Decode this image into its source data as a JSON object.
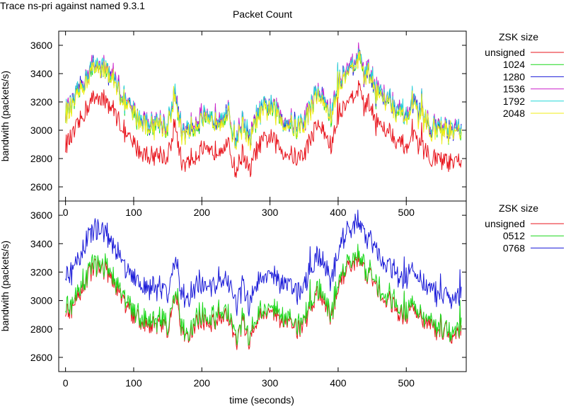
{
  "header": {
    "trace_title": "Trace ns-pri against named 9.3.1",
    "chart_title": "Packet Count"
  },
  "colors": {
    "red": "#e8141c",
    "magenta": "#cc22cc",
    "blue": "#1a1ad8",
    "cyan": "#22d8d8",
    "green": "#1ad81a",
    "yellow": "#f2ee14"
  },
  "chart_data": [
    {
      "type": "line",
      "title": "Packet Count",
      "xlabel": "",
      "ylabel": "bandwith (packets/s)",
      "xlim": [
        -10,
        588
      ],
      "ylim": [
        2500,
        3700
      ],
      "x_ticks": [
        "0",
        "100",
        "200",
        "300",
        "400",
        "500"
      ],
      "y_ticks": [
        "2600",
        "2800",
        "3000",
        "3200",
        "3400",
        "3600"
      ],
      "legend_title": "ZSK size",
      "legend_position": "outside-right",
      "series": [
        {
          "name": "unsigned",
          "color": "#e8141c",
          "offset": 0
        },
        {
          "name": "1024",
          "color": "#1ad81a",
          "offset": 215
        },
        {
          "name": "1280",
          "color": "#1a1ad8",
          "offset": 225
        },
        {
          "name": "1536",
          "color": "#cc22cc",
          "offset": 238
        },
        {
          "name": "1792",
          "color": "#22d8d8",
          "offset": 230
        },
        {
          "name": "2048",
          "color": "#f2ee14",
          "offset": 205
        }
      ],
      "unsigned_profile": {
        "x": [
          0,
          10,
          20,
          30,
          40,
          50,
          60,
          70,
          80,
          90,
          100,
          110,
          120,
          130,
          140,
          150,
          160,
          170,
          180,
          190,
          200,
          210,
          220,
          230,
          240,
          250,
          260,
          270,
          280,
          290,
          300,
          310,
          320,
          330,
          340,
          350,
          360,
          370,
          380,
          390,
          400,
          410,
          420,
          430,
          440,
          450,
          460,
          470,
          480,
          490,
          500,
          510,
          520,
          530,
          540,
          550,
          560,
          570,
          580
        ],
        "y": [
          2900,
          2950,
          3050,
          3150,
          3220,
          3250,
          3200,
          3150,
          3050,
          2950,
          2900,
          2850,
          2830,
          2820,
          2840,
          2800,
          3050,
          2780,
          2760,
          2820,
          2870,
          2820,
          2860,
          2900,
          2880,
          2700,
          2850,
          2700,
          2860,
          2920,
          2950,
          2900,
          2850,
          2830,
          2800,
          2830,
          2950,
          3050,
          2980,
          2880,
          3100,
          3200,
          3250,
          3300,
          3200,
          3150,
          3050,
          3020,
          2980,
          2900,
          2900,
          2950,
          2880,
          2850,
          2800,
          2780,
          2780,
          2750,
          2800
        ]
      }
    },
    {
      "type": "line",
      "title": "",
      "xlabel": "time (seconds)",
      "ylabel": "bandwith (packets/s)",
      "xlim": [
        -10,
        588
      ],
      "ylim": [
        2500,
        3700
      ],
      "x_ticks": [
        "0",
        "100",
        "200",
        "300",
        "400",
        "500"
      ],
      "y_ticks": [
        "2600",
        "2800",
        "3000",
        "3200",
        "3400",
        "3600"
      ],
      "legend_title": "ZSK size",
      "legend_position": "outside-right",
      "series": [
        {
          "name": "unsigned",
          "color": "#e8141c",
          "offset": 0
        },
        {
          "name": "0512",
          "color": "#1ad81a",
          "offset": 30
        },
        {
          "name": "0768",
          "color": "#1a1ad8",
          "offset": 260
        }
      ],
      "unsigned_profile": {
        "x": [
          0,
          10,
          20,
          30,
          40,
          50,
          60,
          70,
          80,
          90,
          100,
          110,
          120,
          130,
          140,
          150,
          160,
          170,
          180,
          190,
          200,
          210,
          220,
          230,
          240,
          250,
          260,
          270,
          280,
          290,
          300,
          310,
          320,
          330,
          340,
          350,
          360,
          370,
          380,
          390,
          400,
          410,
          420,
          430,
          440,
          450,
          460,
          470,
          480,
          490,
          500,
          510,
          520,
          530,
          540,
          550,
          560,
          570,
          580
        ],
        "y": [
          2900,
          2950,
          3050,
          3150,
          3220,
          3250,
          3200,
          3150,
          3050,
          2950,
          2900,
          2850,
          2830,
          2820,
          2840,
          2800,
          3050,
          2780,
          2760,
          2820,
          2870,
          2820,
          2860,
          2900,
          2880,
          2700,
          2850,
          2700,
          2860,
          2920,
          2950,
          2900,
          2850,
          2830,
          2800,
          2830,
          2950,
          3050,
          2980,
          2880,
          3100,
          3200,
          3250,
          3300,
          3200,
          3150,
          3050,
          3020,
          2980,
          2900,
          2900,
          2950,
          2880,
          2850,
          2800,
          2780,
          2780,
          2750,
          2800
        ]
      }
    }
  ]
}
